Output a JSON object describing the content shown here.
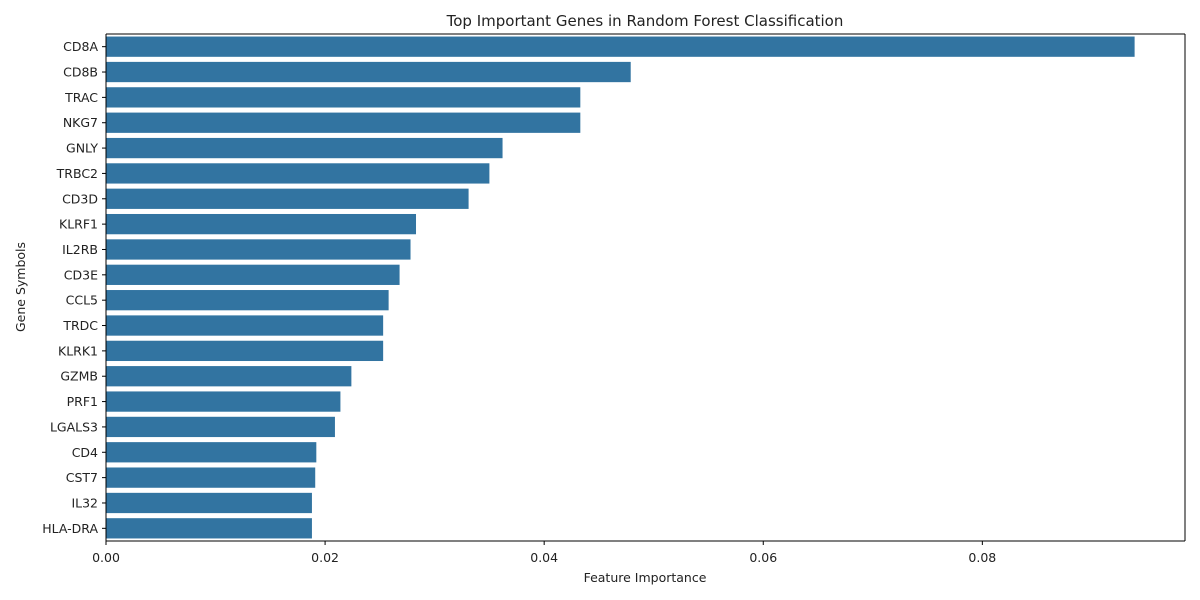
{
  "chart_data": {
    "type": "bar",
    "orientation": "horizontal",
    "title": "Top Important Genes in Random Forest Classification",
    "xlabel": "Feature Importance",
    "ylabel": "Gene Symbols",
    "xlim": [
      0,
      0.0985
    ],
    "xticks": [
      0.0,
      0.02,
      0.04,
      0.06,
      0.08
    ],
    "xtick_labels": [
      "0.00",
      "0.02",
      "0.04",
      "0.06",
      "0.08"
    ],
    "grid": false,
    "bar_color": "#3274a1",
    "categories": [
      "CD8A",
      "CD8B",
      "TRAC",
      "NKG7",
      "GNLY",
      "TRBC2",
      "CD3D",
      "KLRF1",
      "IL2RB",
      "CD3E",
      "CCL5",
      "TRDC",
      "KLRK1",
      "GZMB",
      "PRF1",
      "LGALS3",
      "CD4",
      "CST7",
      "IL32",
      "HLA-DRA"
    ],
    "values": [
      0.0939,
      0.0479,
      0.0433,
      0.0433,
      0.0362,
      0.035,
      0.0331,
      0.0283,
      0.0278,
      0.0268,
      0.0258,
      0.0253,
      0.0253,
      0.0224,
      0.0214,
      0.0209,
      0.0192,
      0.0191,
      0.0188,
      0.0188
    ]
  }
}
